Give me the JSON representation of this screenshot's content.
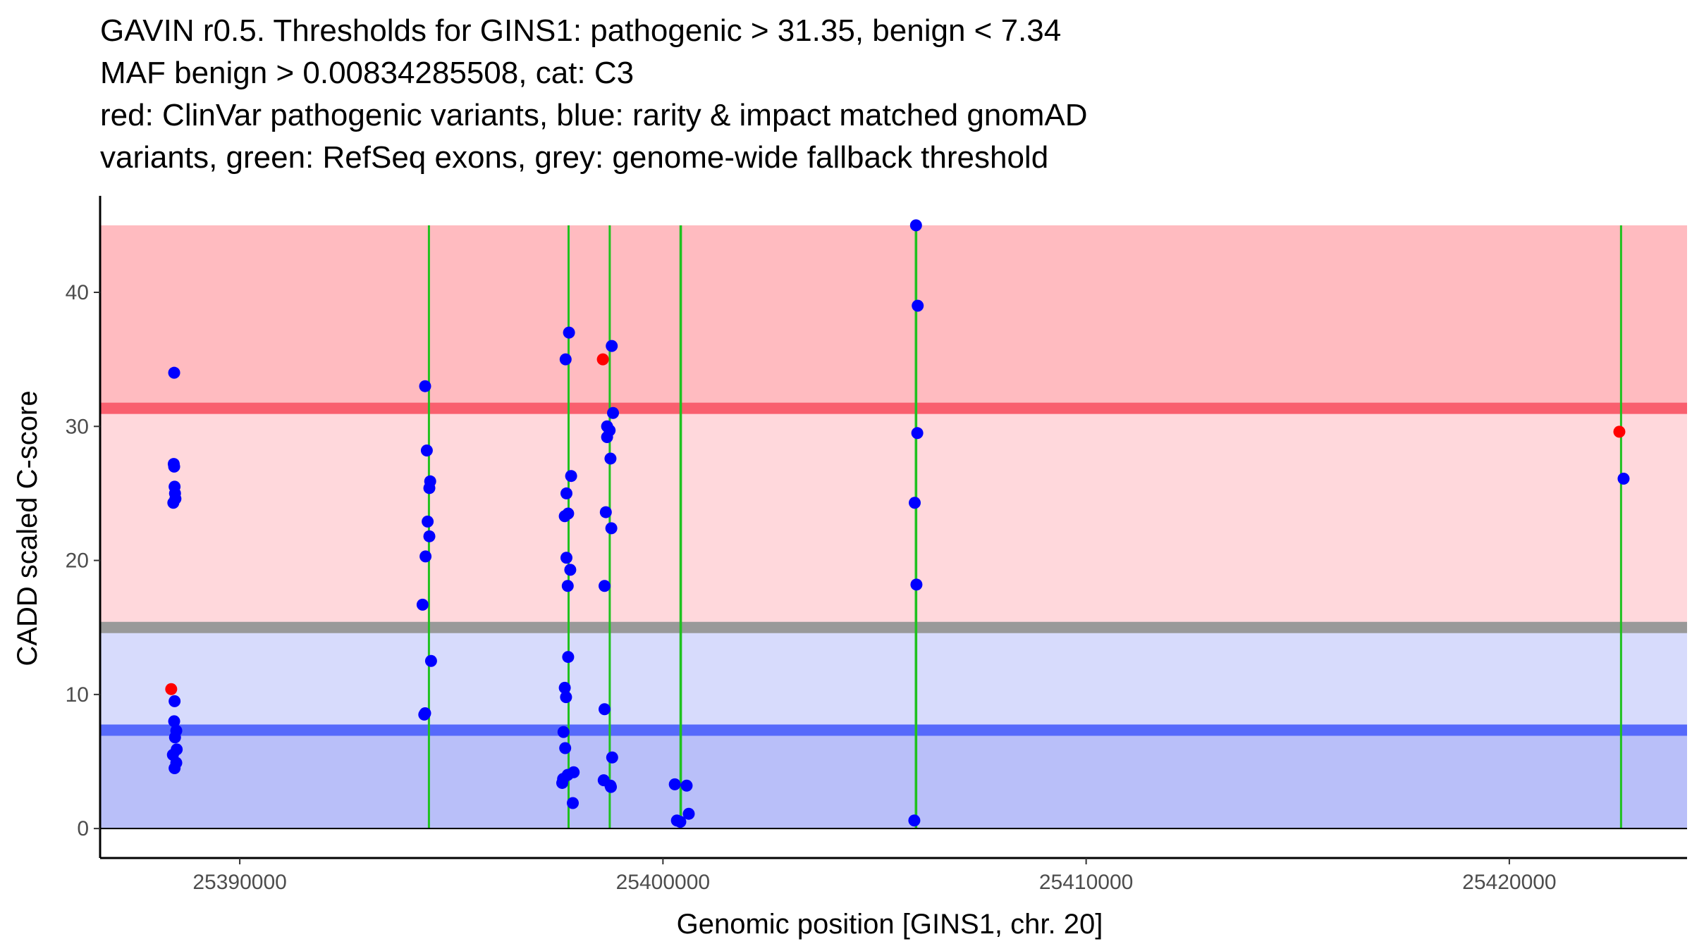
{
  "chart_data": {
    "type": "scatter",
    "title_lines": [
      "GAVIN r0.5. Thresholds for GINS1: pathogenic > 31.35, benign < 7.34",
      "MAF benign > 0.00834285508, cat: C3",
      "red: ClinVar pathogenic variants, blue: rarity & impact matched gnomAD",
      "variants, green: RefSeq exons, grey: genome-wide fallback threshold"
    ],
    "xlabel": "Genomic position [GINS1, chr. 20]",
    "ylabel": "CADD scaled C-score",
    "xlim": [
      25386700,
      25424200
    ],
    "ylim": [
      -2.2,
      47.2
    ],
    "x_ticks": [
      25390000,
      25400000,
      25410000,
      25420000
    ],
    "x_tick_labels": [
      "25390000",
      "25400000",
      "25410000",
      "25420000"
    ],
    "y_ticks": [
      0,
      10,
      20,
      30,
      40
    ],
    "y_tick_labels": [
      "0",
      "10",
      "20",
      "30",
      "40"
    ],
    "thresholds": {
      "pathogenic": 31.35,
      "benign": 7.34,
      "fallback": 15.0,
      "max": 45
    },
    "colors": {
      "pathogenic_zone": "#ffbbc0",
      "mid_red_zone": "#ffd8dc",
      "mid_blue_zone": "#d7dbfc",
      "benign_zone": "#b9bff9",
      "pathogenic_line": "#f95f6e",
      "benign_line": "#5669fb",
      "fallback_line": "#999999",
      "exon": "#1fc11f",
      "gnomad": "#0000ff",
      "clinvar": "#ff0000"
    },
    "exons": [
      {
        "start": 25394460,
        "end": 25394480
      },
      {
        "start": 25397750,
        "end": 25397790
      },
      {
        "start": 25398730,
        "end": 25398755
      },
      {
        "start": 25400390,
        "end": 25400450
      },
      {
        "start": 25405950,
        "end": 25406010
      },
      {
        "start": 25422630,
        "end": 25422650
      }
    ],
    "series": [
      {
        "name": "gnomAD",
        "color": "#0000ff",
        "points": [
          [
            25388450,
            34.0
          ],
          [
            25388440,
            27.2
          ],
          [
            25388450,
            27.0
          ],
          [
            25388460,
            25.5
          ],
          [
            25388470,
            25.0
          ],
          [
            25388480,
            24.6
          ],
          [
            25388430,
            24.3
          ],
          [
            25388460,
            9.5
          ],
          [
            25388450,
            8.0
          ],
          [
            25388500,
            7.3
          ],
          [
            25388470,
            6.8
          ],
          [
            25388510,
            5.9
          ],
          [
            25388420,
            5.5
          ],
          [
            25388500,
            4.9
          ],
          [
            25388460,
            4.5
          ],
          [
            25394380,
            33.0
          ],
          [
            25394420,
            28.2
          ],
          [
            25394500,
            25.9
          ],
          [
            25394480,
            25.4
          ],
          [
            25394440,
            22.9
          ],
          [
            25394480,
            21.8
          ],
          [
            25394390,
            20.3
          ],
          [
            25394320,
            16.7
          ],
          [
            25394520,
            12.5
          ],
          [
            25394380,
            8.6
          ],
          [
            25394360,
            8.5
          ],
          [
            25397780,
            37.0
          ],
          [
            25397700,
            35.0
          ],
          [
            25397830,
            26.3
          ],
          [
            25397720,
            25.0
          ],
          [
            25397760,
            23.5
          ],
          [
            25397680,
            23.3
          ],
          [
            25397720,
            20.2
          ],
          [
            25397810,
            19.3
          ],
          [
            25397750,
            18.1
          ],
          [
            25397760,
            12.8
          ],
          [
            25397680,
            10.5
          ],
          [
            25397710,
            9.8
          ],
          [
            25397650,
            7.2
          ],
          [
            25397690,
            6.0
          ],
          [
            25397890,
            4.2
          ],
          [
            25397750,
            4.0
          ],
          [
            25397640,
            3.7
          ],
          [
            25397620,
            3.4
          ],
          [
            25397870,
            1.9
          ],
          [
            25398790,
            36.0
          ],
          [
            25398820,
            31.0
          ],
          [
            25398680,
            30.0
          ],
          [
            25398740,
            29.7
          ],
          [
            25398680,
            29.2
          ],
          [
            25398760,
            27.6
          ],
          [
            25398650,
            23.6
          ],
          [
            25398780,
            22.4
          ],
          [
            25398620,
            18.1
          ],
          [
            25398620,
            8.9
          ],
          [
            25398800,
            5.3
          ],
          [
            25398600,
            3.6
          ],
          [
            25398760,
            3.2
          ],
          [
            25398770,
            3.1
          ],
          [
            25400280,
            3.3
          ],
          [
            25400560,
            3.2
          ],
          [
            25400330,
            0.6
          ],
          [
            25400410,
            0.5
          ],
          [
            25400610,
            1.1
          ],
          [
            25405980,
            45.0
          ],
          [
            25406020,
            39.0
          ],
          [
            25406010,
            29.5
          ],
          [
            25405950,
            24.3
          ],
          [
            25405990,
            18.2
          ],
          [
            25405940,
            0.6
          ],
          [
            25422700,
            26.1
          ]
        ]
      },
      {
        "name": "ClinVar",
        "color": "#ff0000",
        "points": [
          [
            25388380,
            10.4
          ],
          [
            25398580,
            35.0
          ],
          [
            25422600,
            29.6
          ]
        ]
      }
    ]
  }
}
